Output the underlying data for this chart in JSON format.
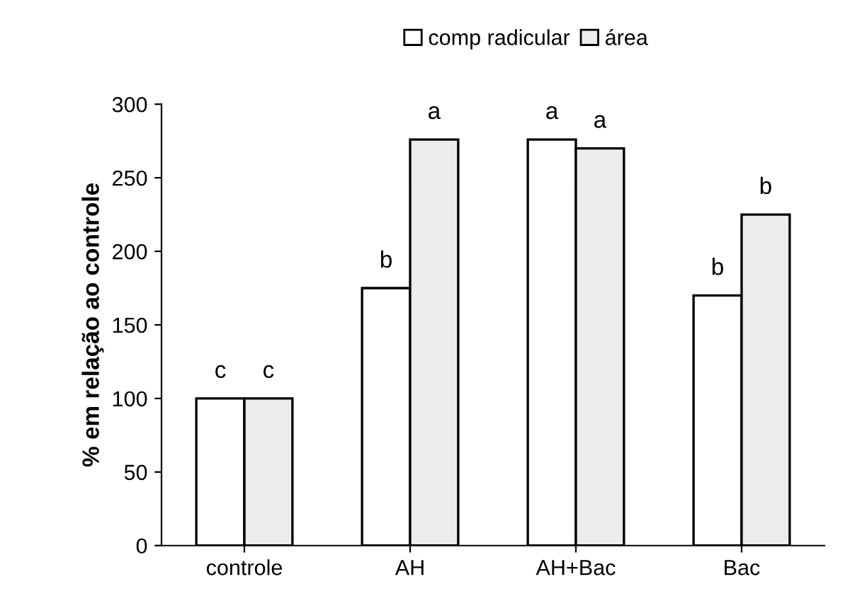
{
  "chart_data": {
    "type": "bar",
    "ylabel": "% em relação ao controle",
    "categories": [
      "controle",
      "AH",
      "AH+Bac",
      "Bac"
    ],
    "series": [
      {
        "name": "comp radicular",
        "color": "#ffffff",
        "values": [
          100,
          175,
          276,
          170
        ],
        "value_labels": [
          "c",
          "b",
          "a",
          "b"
        ]
      },
      {
        "name": "área",
        "color": "#ececec",
        "values": [
          100,
          276,
          270,
          225
        ],
        "value_labels": [
          "c",
          "a",
          "a",
          "b"
        ]
      }
    ],
    "ylim": [
      0,
      300
    ],
    "yticks": [
      0,
      50,
      100,
      150,
      200,
      250,
      300
    ],
    "grid": false,
    "legend": "top"
  }
}
